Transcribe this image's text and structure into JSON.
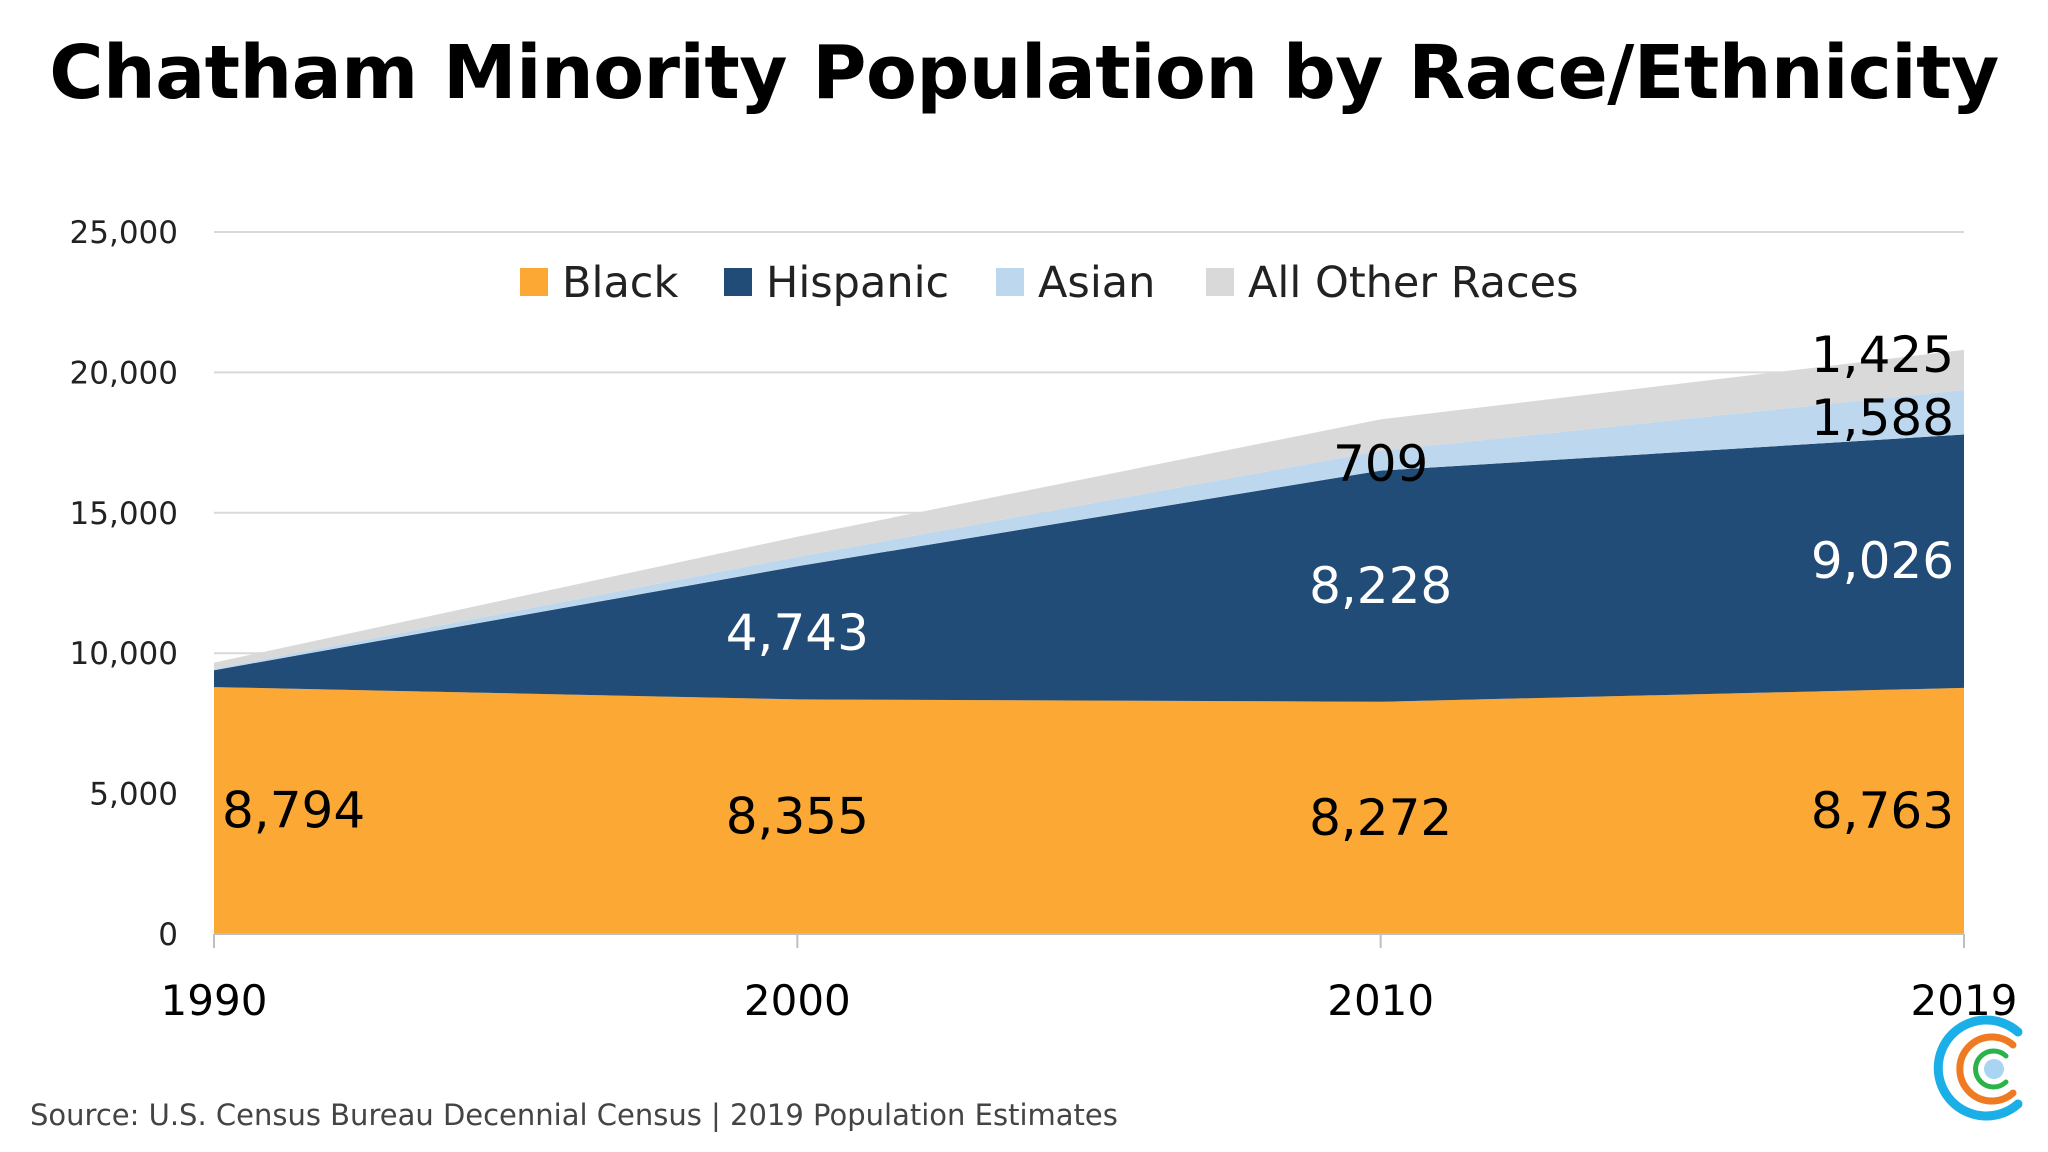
{
  "chart_data": {
    "type": "area",
    "stacked": true,
    "title": "Chatham Minority Population by Race/Ethnicity",
    "x": [
      "1990",
      "2000",
      "2010",
      "2019"
    ],
    "series": [
      {
        "name": "Black",
        "color": "#FBA834",
        "values": [
          8794,
          8355,
          8272,
          8763
        ],
        "labels": [
          "8,794",
          "8,355",
          "8,272",
          "8,763"
        ],
        "label_color": "#000000"
      },
      {
        "name": "Hispanic",
        "color": "#214C77",
        "values": [
          600,
          4743,
          8228,
          9026
        ],
        "labels": [
          null,
          "4,743",
          "8,228",
          "9,026"
        ],
        "label_color": "#FFFFFF"
      },
      {
        "name": "Asian",
        "color": "#BDD7EE",
        "values": [
          50,
          330,
          709,
          1588
        ],
        "labels": [
          null,
          null,
          "709",
          "1,588"
        ],
        "label_color": "#000000"
      },
      {
        "name": "All Other Races",
        "color": "#D9D9D9",
        "values": [
          220,
          720,
          1120,
          1425
        ],
        "labels": [
          null,
          null,
          null,
          "1,425"
        ],
        "label_color": "#000000"
      }
    ],
    "ylim": [
      0,
      25000
    ],
    "yticks": [
      "0",
      "5,000",
      "10,000",
      "15,000",
      "20,000",
      "25,000"
    ],
    "ytick_values": [
      0,
      5000,
      10000,
      15000,
      20000,
      25000
    ],
    "grid": true,
    "legend": "top-center",
    "xlabel": "",
    "ylabel": ""
  },
  "source": "Source: U.S. Census Bureau Decennial Census | 2019 Population Estimates",
  "logo": {
    "icon": "concentric-c-logo-icon",
    "colors": [
      "#1AAFE6",
      "#F07A22",
      "#2BB34A",
      "#A9D4F2"
    ]
  }
}
